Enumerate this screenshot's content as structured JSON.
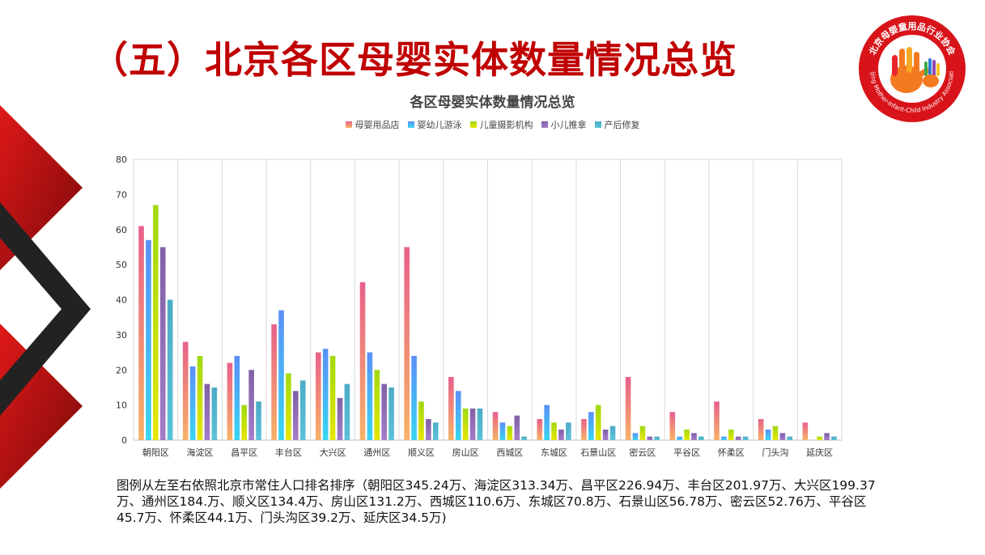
{
  "slide_title": "（五）北京各区母婴实体数量情况总览",
  "logo": {
    "text_cn": "北京母婴童用品行业协会",
    "text_en": "Beijing Mother-Infant-Child Industry Association"
  },
  "note": "图例从左至右依照北京市常住人口排名排序（朝阳区345.24万、海淀区313.34万、昌平区226.94万、丰台区201.97万、大兴区199.37万、通州区184.万、顺义区134.4万、房山区131.2万、西城区110.6万、东城区70.8万、石景山区56.78万、密云区52.76万、平谷区45.7万、怀柔区44.1万、门头沟区39.2万、延庆区34.5万)",
  "chart_data": {
    "type": "bar",
    "title": "各区母婴实体数量情况总览",
    "categories": [
      "朝阳区",
      "海淀区",
      "昌平区",
      "丰台区",
      "大兴区",
      "通州区",
      "顺义区",
      "房山区",
      "西城区",
      "东城区",
      "石景山区",
      "密云区",
      "平谷区",
      "怀柔区",
      "门头沟",
      "延庆区"
    ],
    "series": [
      {
        "name": "母婴用品店",
        "color": "#e8608a",
        "values": [
          61,
          28,
          22,
          33,
          25,
          45,
          55,
          18,
          8,
          6,
          6,
          18,
          8,
          11,
          6,
          5
        ]
      },
      {
        "name": "婴幼儿游泳",
        "color": "#5b8ff9",
        "values": [
          57,
          21,
          24,
          37,
          26,
          25,
          24,
          14,
          5,
          10,
          8,
          2,
          1,
          1,
          3,
          0
        ]
      },
      {
        "name": "儿童摄影机构",
        "color": "#a0d911",
        "values": [
          67,
          24,
          10,
          19,
          24,
          20,
          11,
          9,
          4,
          5,
          10,
          4,
          3,
          3,
          4,
          1
        ]
      },
      {
        "name": "小儿推拿",
        "color": "#8061a6",
        "values": [
          55,
          16,
          20,
          14,
          12,
          16,
          6,
          9,
          7,
          3,
          3,
          1,
          2,
          1,
          2,
          2
        ]
      },
      {
        "name": "产后修复",
        "color": "#4bacc6",
        "values": [
          40,
          15,
          11,
          17,
          16,
          15,
          5,
          9,
          1,
          5,
          4,
          1,
          1,
          1,
          1,
          1
        ]
      }
    ],
    "ylim": [
      0,
      80
    ],
    "yticks": [
      0,
      10,
      20,
      30,
      40,
      50,
      60,
      70,
      80
    ],
    "xlabel": "",
    "ylabel": "",
    "grid": "vertical",
    "legend_position": "top"
  }
}
